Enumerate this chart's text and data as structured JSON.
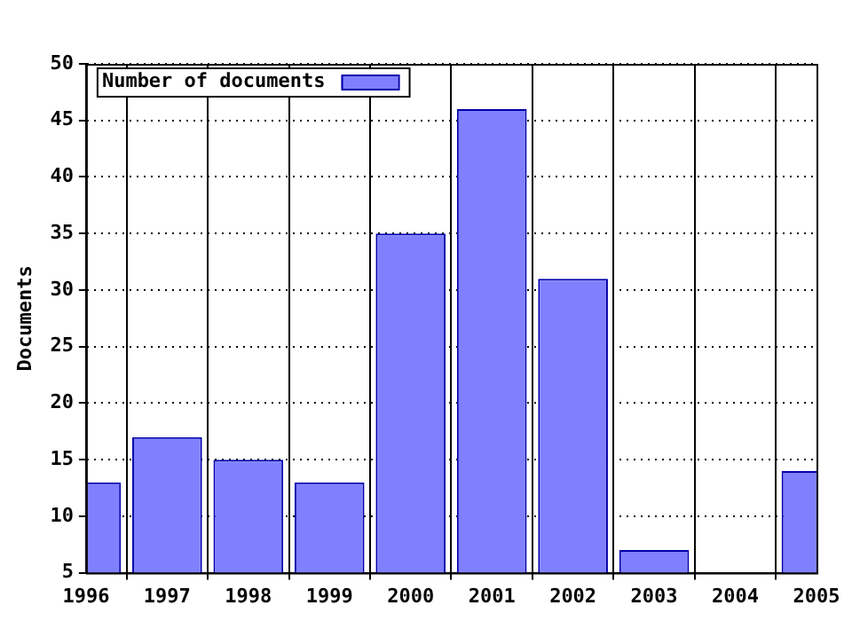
{
  "chart_data": {
    "type": "bar",
    "ylabel": "Documents",
    "categories": [
      "1996",
      "1997",
      "1998",
      "1999",
      "2000",
      "2001",
      "2002",
      "2003",
      "2004",
      "2005"
    ],
    "series": [
      {
        "name": "Number of documents",
        "color": "#8080ff",
        "values": [
          13,
          17,
          15,
          13,
          35,
          46,
          31,
          7,
          null,
          14
        ]
      }
    ],
    "ylim": [
      5,
      50
    ],
    "yticks": [
      5,
      10,
      15,
      20,
      25,
      30,
      35,
      40,
      45,
      50
    ],
    "grid": true,
    "legend": "top left"
  }
}
